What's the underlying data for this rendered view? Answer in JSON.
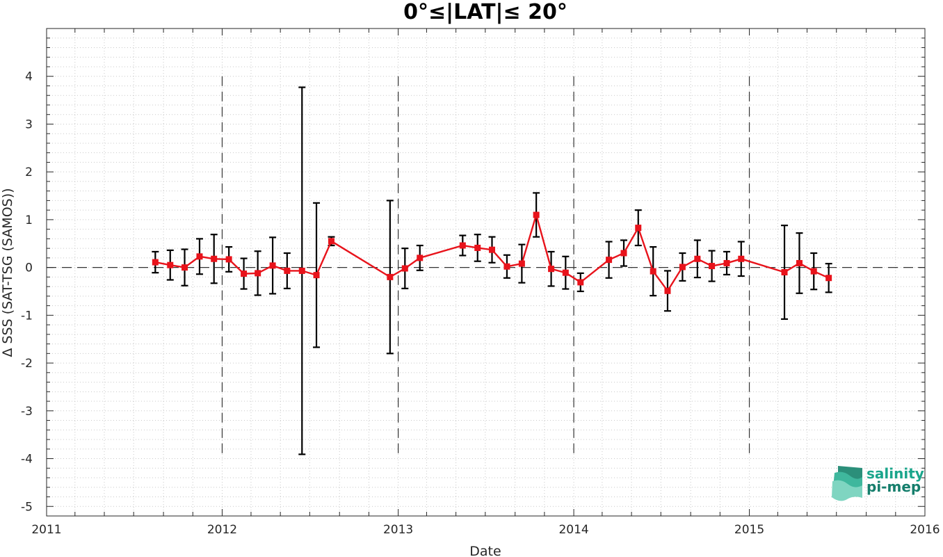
{
  "chart_data": {
    "type": "line",
    "title": "0°≤|LAT|≤ 20°",
    "xlabel": "Date",
    "ylabel": "Δ SSS (SAT-TSG (SAMOS))",
    "xlim": [
      "2011-01-01",
      "2016-01-01"
    ],
    "ylim": [
      -5.2,
      5.0
    ],
    "x_tick_labels": [
      "2011",
      "2012",
      "2013",
      "2014",
      "2015",
      "2016"
    ],
    "y_tick_labels": [
      "-5",
      "-4",
      "-3",
      "-2",
      "-1",
      "0",
      "1",
      "2",
      "3",
      "4"
    ],
    "grid": "minor dotted",
    "reference_line": {
      "y": 0,
      "style": "dashed"
    },
    "year_dividers": {
      "dates": [
        "2012-01-01",
        "2013-01-01",
        "2014-01-01",
        "2015-01-01"
      ],
      "ymin": -4,
      "ymax": 4,
      "style": "dashed"
    },
    "series": [
      {
        "marker": "square",
        "color": "#e8131b",
        "errorbar_color": "#000000",
        "points": [
          {
            "x": "2011-08-15",
            "y": 0.11,
            "err": 0.22
          },
          {
            "x": "2011-09-15",
            "y": 0.05,
            "err": 0.31
          },
          {
            "x": "2011-10-15",
            "y": 0.0,
            "err": 0.38
          },
          {
            "x": "2011-11-15",
            "y": 0.23,
            "err": 0.37
          },
          {
            "x": "2011-12-15",
            "y": 0.18,
            "err": 0.51
          },
          {
            "x": "2012-01-15",
            "y": 0.17,
            "err": 0.26
          },
          {
            "x": "2012-02-15",
            "y": -0.13,
            "err": 0.32
          },
          {
            "x": "2012-03-15",
            "y": -0.12,
            "err": 0.46
          },
          {
            "x": "2012-04-15",
            "y": 0.04,
            "err": 0.59
          },
          {
            "x": "2012-05-15",
            "y": -0.07,
            "err": 0.37
          },
          {
            "x": "2012-06-15",
            "y": -0.07,
            "err": 3.84
          },
          {
            "x": "2012-07-15",
            "y": -0.16,
            "err": 1.51
          },
          {
            "x": "2012-08-15",
            "y": 0.55,
            "err": 0.09
          },
          {
            "x": "2012-12-15",
            "y": -0.2,
            "err": 1.6
          },
          {
            "x": "2013-01-15",
            "y": -0.02,
            "err": 0.42
          },
          {
            "x": "2013-02-15",
            "y": 0.2,
            "err": 0.26
          },
          {
            "x": "2013-05-15",
            "y": 0.46,
            "err": 0.21
          },
          {
            "x": "2013-06-15",
            "y": 0.41,
            "err": 0.28
          },
          {
            "x": "2013-07-15",
            "y": 0.37,
            "err": 0.27
          },
          {
            "x": "2013-08-15",
            "y": 0.02,
            "err": 0.24
          },
          {
            "x": "2013-09-15",
            "y": 0.08,
            "err": 0.4
          },
          {
            "x": "2013-10-15",
            "y": 1.1,
            "err": 0.46
          },
          {
            "x": "2013-11-15",
            "y": -0.03,
            "err": 0.36
          },
          {
            "x": "2013-12-15",
            "y": -0.11,
            "err": 0.34
          },
          {
            "x": "2014-01-15",
            "y": -0.31,
            "err": 0.19
          },
          {
            "x": "2014-03-15",
            "y": 0.16,
            "err": 0.38
          },
          {
            "x": "2014-04-15",
            "y": 0.3,
            "err": 0.27
          },
          {
            "x": "2014-05-15",
            "y": 0.83,
            "err": 0.37
          },
          {
            "x": "2014-06-15",
            "y": -0.08,
            "err": 0.51
          },
          {
            "x": "2014-07-15",
            "y": -0.49,
            "err": 0.42
          },
          {
            "x": "2014-08-15",
            "y": 0.01,
            "err": 0.29
          },
          {
            "x": "2014-09-15",
            "y": 0.18,
            "err": 0.39
          },
          {
            "x": "2014-10-15",
            "y": 0.03,
            "err": 0.32
          },
          {
            "x": "2014-11-15",
            "y": 0.09,
            "err": 0.24
          },
          {
            "x": "2014-12-15",
            "y": 0.18,
            "err": 0.36
          },
          {
            "x": "2015-03-15",
            "y": -0.1,
            "err": 0.98
          },
          {
            "x": "2015-04-15",
            "y": 0.09,
            "err": 0.63
          },
          {
            "x": "2015-05-15",
            "y": -0.08,
            "err": 0.38
          },
          {
            "x": "2015-06-15",
            "y": -0.22,
            "err": 0.3
          }
        ]
      }
    ]
  },
  "logo": {
    "line1": "salinity",
    "line2": "pi-mep",
    "color": "#1aa58b",
    "icon": "layered-waves-icon"
  }
}
